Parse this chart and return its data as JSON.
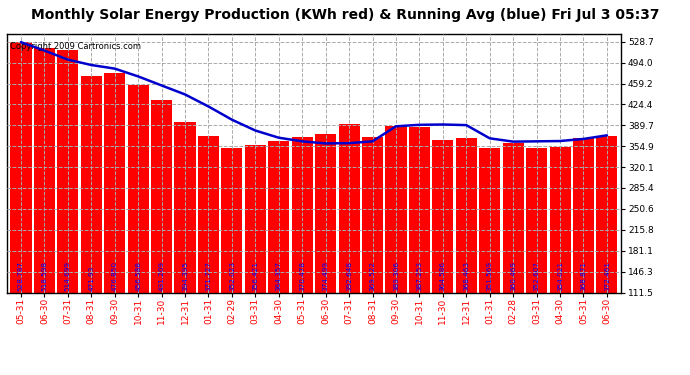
{
  "title": "Monthly Solar Energy Production (KWh red) & Running Avg (blue) Fri Jul 3 05:37",
  "copyright": "Copyright 2009 Cartronics.com",
  "bar_color": "#ff0000",
  "avg_line_color": "#0000cc",
  "background_color": "#ffffff",
  "grid_color": "#aaaaaa",
  "categories": [
    "05-31",
    "06-30",
    "07-31",
    "08-31",
    "09-30",
    "10-31",
    "11-30",
    "12-31",
    "01-31",
    "02-29",
    "03-31",
    "04-30",
    "05-31",
    "06-30",
    "07-31",
    "08-31",
    "09-30",
    "10-31",
    "11-30",
    "12-31",
    "01-31",
    "02-28",
    "03-31",
    "04-30",
    "05-31",
    "06-30"
  ],
  "bar_values": [
    528.787,
    518.598,
    514.699,
    471.93,
    476.85,
    456.588,
    431.209,
    394.395,
    371.727,
    352.023,
    356.421,
    364.357,
    370.478,
    374.499,
    392.648,
    369.522,
    389.306,
    387.253,
    364.586,
    368.463,
    351.569,
    360.469,
    352.607,
    354.021,
    368.871,
    372.461
  ],
  "bar_labels": [
    "528.787",
    "518.598",
    "514.699",
    "471.93",
    "476.850",
    "456.588",
    "431.209",
    "394.395",
    "371.727",
    "352.023",
    "356.421",
    "364.357",
    "370.478",
    "374.499",
    "392.648",
    "369.522",
    "389.306",
    "387.253",
    "364.586",
    "368.463",
    "351.569",
    "360.469",
    "352.607",
    "354.021",
    "368.871",
    "372.461"
  ],
  "avg_values": [
    528.0,
    514.0,
    499.0,
    490.0,
    484.0,
    471.0,
    456.0,
    441.0,
    421.0,
    399.0,
    381.0,
    369.0,
    363.0,
    359.5,
    360.0,
    363.0,
    388.0,
    390.5,
    391.0,
    390.0,
    368.0,
    362.5,
    363.0,
    363.5,
    367.0,
    373.0
  ],
  "ytick_values": [
    111.5,
    146.3,
    181.1,
    215.8,
    250.6,
    285.4,
    320.1,
    354.9,
    389.7,
    424.4,
    459.2,
    494.0,
    528.7
  ],
  "ylim_min": 111.5,
  "ylim_max": 542.0,
  "title_fontsize": 10,
  "copyright_fontsize": 6,
  "tick_fontsize": 6.5,
  "bar_label_fontsize": 5.2,
  "xlabel_color": "#ff0000"
}
